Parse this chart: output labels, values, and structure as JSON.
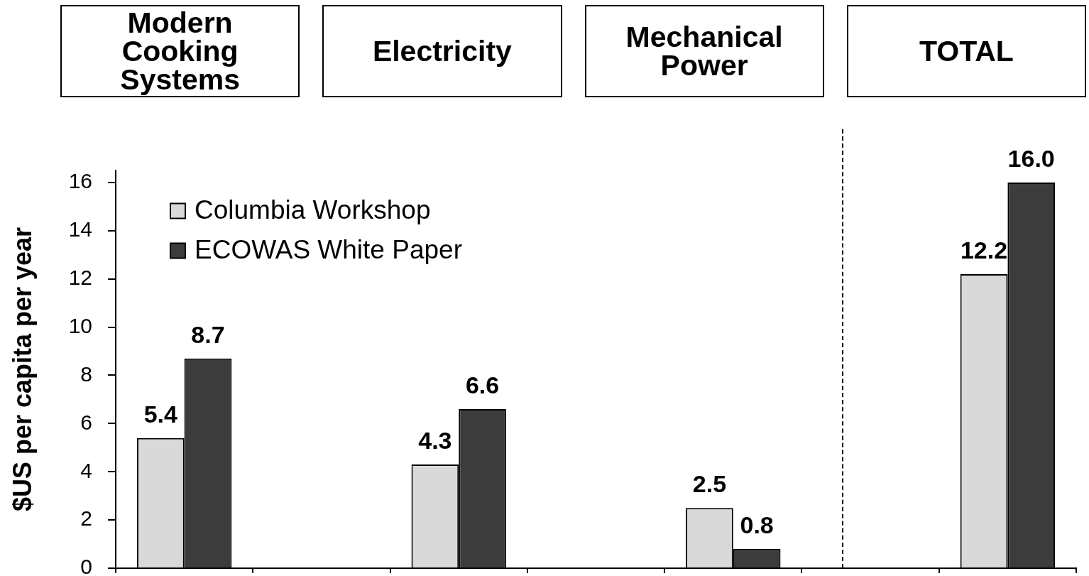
{
  "chart_data": {
    "type": "bar",
    "categories": [
      "Modern Cooking Systems",
      null,
      "Electricity",
      null,
      "Mechanical Power",
      null,
      "TOTAL"
    ],
    "ylabel": "$US per capita per year",
    "series": [
      {
        "name": "Columbia Workshop",
        "color": "#d9d9d9",
        "values": [
          5.4,
          null,
          4.3,
          null,
          2.5,
          null,
          12.2
        ],
        "value_labels": [
          "5.4",
          null,
          "4.3",
          null,
          "2.5",
          null,
          "12.2"
        ]
      },
      {
        "name": "ECOWAS White Paper",
        "color": "#3c3c3c",
        "values": [
          8.7,
          null,
          6.6,
          null,
          0.8,
          null,
          16.0
        ],
        "value_labels": [
          "8.7",
          null,
          "6.6",
          null,
          "0.8",
          null,
          "16.0"
        ]
      }
    ],
    "ylim": [
      0,
      16.5
    ],
    "yticks": [
      0,
      2,
      4,
      6,
      8,
      10,
      12,
      14,
      16
    ],
    "legend": "top left"
  }
}
